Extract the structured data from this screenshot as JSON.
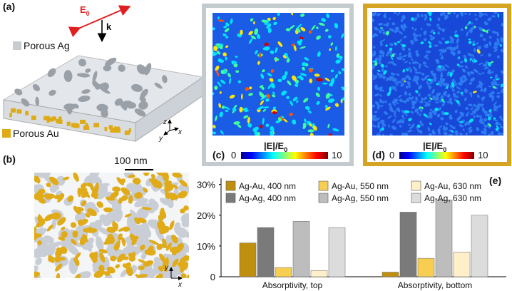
{
  "panels": {
    "a": {
      "label": "(a)",
      "field": {
        "symbol": "E",
        "subscript": "0"
      },
      "wavevector": "k",
      "top_material": "Porous Ag",
      "bottom_material": "Porous Au",
      "axes": {
        "z": "z",
        "y": "y",
        "x": "x"
      }
    },
    "b": {
      "label": "(b)",
      "scale_bar": "100 nm",
      "axes": {
        "y": "y",
        "x": "x"
      }
    },
    "c": {
      "label": "(c)",
      "colorbar": {
        "title": "|E|/E",
        "subscript": "0",
        "min": 0,
        "max": 10
      }
    },
    "d": {
      "label": "(d)",
      "colorbar": {
        "title": "|E|/E",
        "subscript": "0",
        "min": 0,
        "max": 10
      }
    },
    "e": {
      "label": "(e)"
    }
  },
  "chart_data": {
    "type": "bar",
    "categories": [
      "Absorptivity, top",
      "Absorptivity, bottom"
    ],
    "series": [
      {
        "name": "Ag-Au, 400 nm",
        "color": "#bf8f0f",
        "values": [
          11,
          1.5
        ]
      },
      {
        "name": "Ag-Ag, 400 nm",
        "color": "#7a7a7a",
        "values": [
          16,
          21
        ]
      },
      {
        "name": "Ag-Au, 550 nm",
        "color": "#f7cd52",
        "values": [
          3,
          6
        ]
      },
      {
        "name": "Ag-Ag, 550 nm",
        "color": "#bdbdbd",
        "values": [
          18,
          25
        ]
      },
      {
        "name": "Ag-Au, 630 nm",
        "color": "#fff0c9",
        "values": [
          2,
          8
        ]
      },
      {
        "name": "Ag-Ag, 630 nm",
        "color": "#dcdcdc",
        "values": [
          16,
          20
        ]
      }
    ],
    "ylim": [
      0,
      32
    ],
    "yticks": [
      0,
      {
        "value": 10,
        "label": "10%"
      },
      {
        "value": 20,
        "label": "20%"
      },
      {
        "value": 30,
        "label": "30%"
      }
    ]
  }
}
